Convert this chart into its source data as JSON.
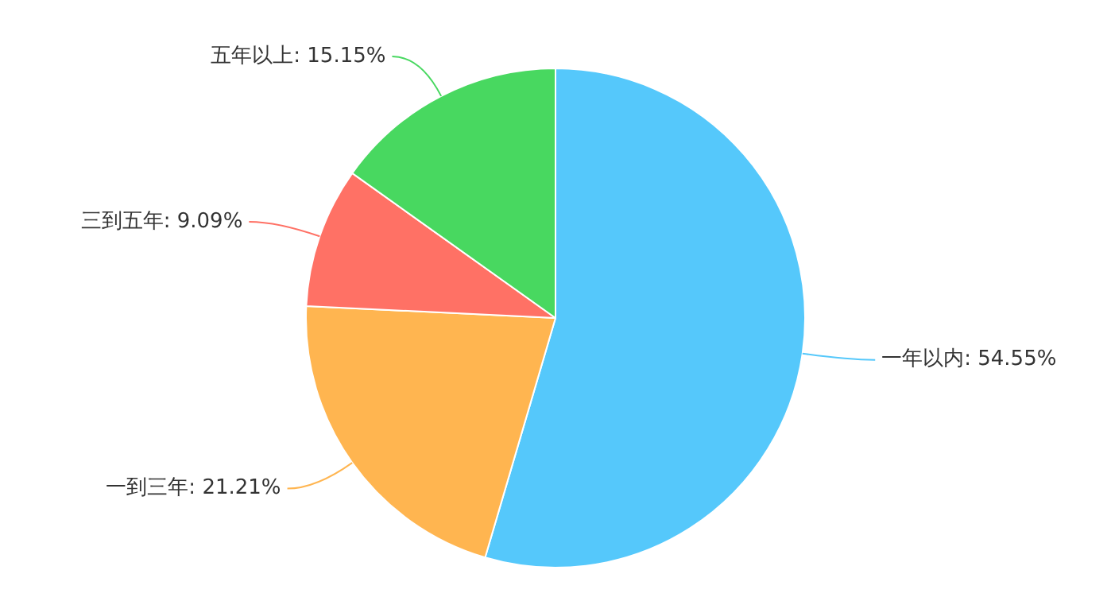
{
  "chart_data": {
    "type": "pie",
    "categories": [
      "一年以内",
      "一到三年",
      "三到五年",
      "五年以上"
    ],
    "values": [
      54.55,
      21.21,
      9.09,
      15.15
    ],
    "value_labels": [
      "54.55%",
      "21.21%",
      "9.09%",
      "15.15%"
    ],
    "colors": [
      "#55c8fb",
      "#ffb550",
      "#ff7165",
      "#48d860"
    ],
    "legend": false
  }
}
